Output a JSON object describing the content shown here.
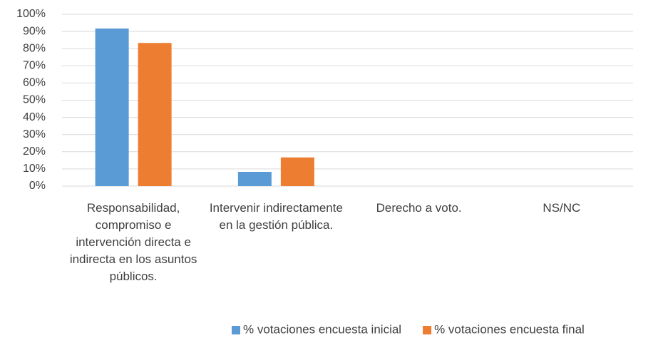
{
  "chart_data": {
    "type": "bar",
    "categories": [
      "Responsabilidad, compromiso e intervención directa e indirecta en los asuntos públicos.",
      "Intervenir indirectamente en la gestión pública.",
      "Derecho a voto.",
      "NS/NC"
    ],
    "series": [
      {
        "name": "% votaciones encuesta inicial",
        "color": "#5b9bd5",
        "values": [
          91.7,
          8.3,
          0,
          0
        ]
      },
      {
        "name": "% votaciones encuesta final",
        "color": "#ed7d31",
        "values": [
          83.3,
          16.7,
          0,
          0
        ]
      }
    ],
    "ylim": [
      0,
      100
    ],
    "yticks": [
      {
        "value": 0,
        "label": "0%"
      },
      {
        "value": 10,
        "label": "10%"
      },
      {
        "value": 20,
        "label": "20%"
      },
      {
        "value": 30,
        "label": "30%"
      },
      {
        "value": 40,
        "label": "40%"
      },
      {
        "value": 50,
        "label": "50%"
      },
      {
        "value": 60,
        "label": "60%"
      },
      {
        "value": 70,
        "label": "70%"
      },
      {
        "value": 80,
        "label": "80%"
      },
      {
        "value": 90,
        "label": "90%"
      },
      {
        "value": 100,
        "label": "100%"
      }
    ],
    "grid": true,
    "legend": "bottom"
  }
}
